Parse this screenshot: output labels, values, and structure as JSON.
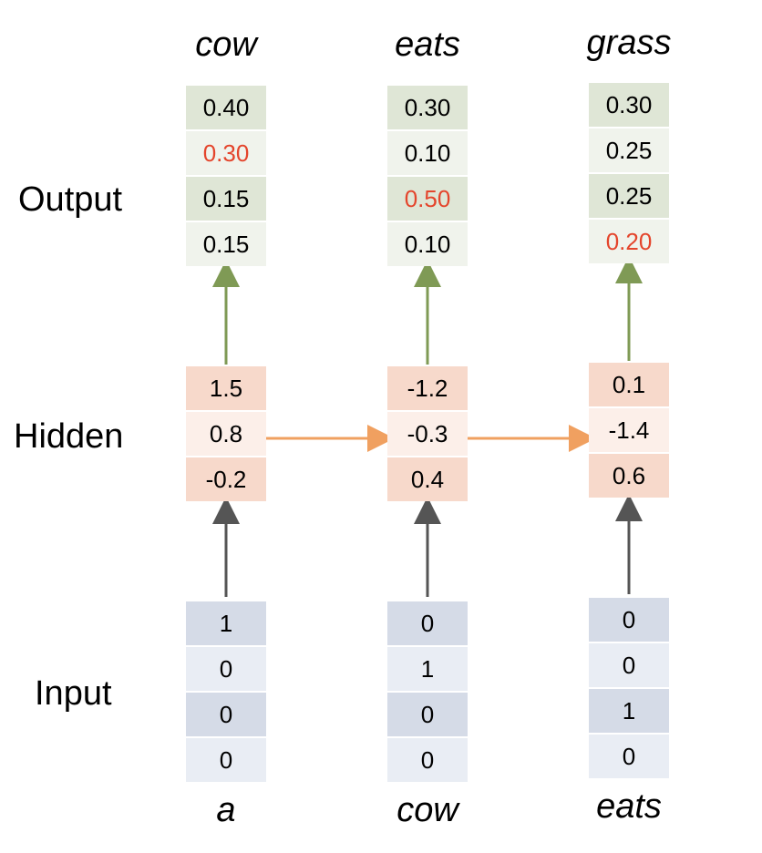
{
  "row_labels": {
    "output": "Output",
    "hidden": "Hidden",
    "input": "Input"
  },
  "columns": [
    {
      "output_word": "cow",
      "input_word": "a",
      "output": [
        {
          "value": "0.40",
          "highlight": false
        },
        {
          "value": "0.30",
          "highlight": true
        },
        {
          "value": "0.15",
          "highlight": false
        },
        {
          "value": "0.15",
          "highlight": false
        }
      ],
      "hidden": [
        "1.5",
        "0.8",
        "-0.2"
      ],
      "input": [
        "1",
        "0",
        "0",
        "0"
      ]
    },
    {
      "output_word": "eats",
      "input_word": "cow",
      "output": [
        {
          "value": "0.30",
          "highlight": false
        },
        {
          "value": "0.10",
          "highlight": false
        },
        {
          "value": "0.50",
          "highlight": true
        },
        {
          "value": "0.10",
          "highlight": false
        }
      ],
      "hidden": [
        "-1.2",
        "-0.3",
        "0.4"
      ],
      "input": [
        "0",
        "1",
        "0",
        "0"
      ]
    },
    {
      "output_word": "grass",
      "input_word": "eats",
      "output": [
        {
          "value": "0.30",
          "highlight": false
        },
        {
          "value": "0.25",
          "highlight": false
        },
        {
          "value": "0.25",
          "highlight": false
        },
        {
          "value": "0.20",
          "highlight": true
        }
      ],
      "hidden": [
        "0.1",
        "-1.4",
        "0.6"
      ],
      "input": [
        "0",
        "0",
        "1",
        "0"
      ]
    }
  ],
  "colors": {
    "highlight_text": "#e4452c",
    "output_arrow": "#7f9a55",
    "recurrent_arrow": "#f0a060",
    "input_arrow": "#555555"
  }
}
